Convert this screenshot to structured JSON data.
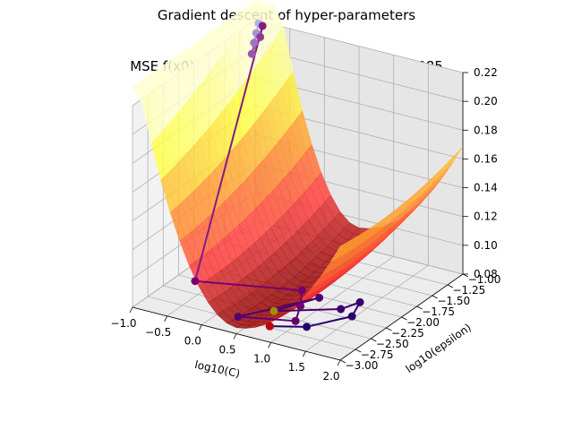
{
  "figure": {
    "suptitle": "Gradient descent of hyper-parameters",
    "title": "MSE f(x0)=0.218, f(low)=0.082, f(final)=0.085"
  },
  "chart_data": {
    "type": "surface3d",
    "xlabel": "log10(C)",
    "ylabel": "log10(epsilon)",
    "zlabel": "",
    "xlim": [
      -1.0,
      2.0
    ],
    "ylim": [
      -3.0,
      -1.0
    ],
    "zlim": [
      0.08,
      0.22
    ],
    "x_ticks": [
      "−1.0",
      "−0.5",
      "0.0",
      "0.5",
      "1.0",
      "1.5",
      "2.0"
    ],
    "y_ticks": [
      "−3.00",
      "−2.75",
      "−2.50",
      "−2.25",
      "−2.00",
      "−1.75",
      "−1.50",
      "−1.25",
      "−1.00"
    ],
    "z_ticks": [
      "0.08",
      "0.10",
      "0.12",
      "0.14",
      "0.16",
      "0.18",
      "0.20",
      "0.22"
    ],
    "grid": true,
    "colormap": [
      "#8b0000",
      "#ff3b3b",
      "#ff9a2e",
      "#ffff40",
      "#ffffd0"
    ],
    "path_colors": {
      "start": "#b0b0ee",
      "middle": "#7a0070",
      "end": "#1a006e"
    },
    "surface_model": {
      "x_min": 0.5,
      "y_min": -2.4,
      "z_min": 0.082,
      "z_start": 0.218
    },
    "descent_path": [
      {
        "x": -0.95,
        "y": -1.0,
        "z": 0.218
      },
      {
        "x": -0.85,
        "y": -1.15,
        "z": 0.217
      },
      {
        "x": -0.75,
        "y": -1.3,
        "z": 0.216
      },
      {
        "x": -0.65,
        "y": -1.45,
        "z": 0.214
      },
      {
        "x": -0.75,
        "y": -1.2,
        "z": 0.217
      },
      {
        "x": -0.85,
        "y": -1.05,
        "z": 0.219
      },
      {
        "x": -0.45,
        "y": -2.6,
        "z": 0.093
      },
      {
        "x": 0.65,
        "y": -2.1,
        "z": 0.085
      },
      {
        "x": 0.85,
        "y": -2.35,
        "z": 0.084
      },
      {
        "x": 1.0,
        "y": -2.6,
        "z": 0.083
      },
      {
        "x": 0.35,
        "y": -2.8,
        "z": 0.084
      },
      {
        "x": 0.9,
        "y": -2.1,
        "z": 0.083
      },
      {
        "x": 0.6,
        "y": -2.5,
        "z": 0.082
      },
      {
        "x": 1.3,
        "y": -2.2,
        "z": 0.083
      },
      {
        "x": 1.4,
        "y": -2.0,
        "z": 0.083
      },
      {
        "x": 1.55,
        "y": -2.3,
        "z": 0.084
      },
      {
        "x": 1.25,
        "y": -2.7,
        "z": 0.085
      },
      {
        "x": 0.85,
        "y": -2.85,
        "z": 0.085
      }
    ],
    "highlight_points": [
      {
        "x": 0.6,
        "y": -2.5,
        "z": 0.082,
        "color": "#a09000",
        "label": "low"
      },
      {
        "x": 0.85,
        "y": -2.85,
        "z": 0.085,
        "color": "#c00010",
        "label": "final"
      }
    ]
  }
}
